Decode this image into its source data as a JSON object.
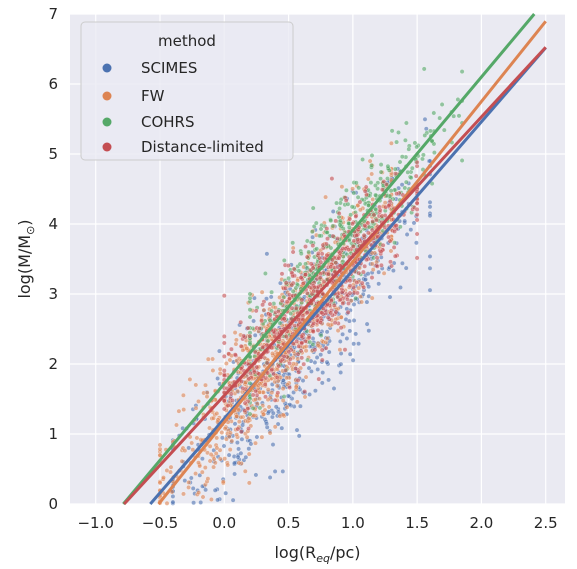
{
  "chart_data": {
    "type": "scatter",
    "title": "",
    "xlabel": {
      "main": "log(R",
      "sub": "eq",
      "suffix": "/pc)"
    },
    "ylabel": {
      "main": "log(M/M",
      "sub": "⊙",
      "suffix": ")"
    },
    "xlim": [
      -1.2,
      2.65
    ],
    "ylim": [
      0,
      7
    ],
    "xticks": [
      -1.0,
      -0.5,
      0.0,
      0.5,
      1.0,
      1.5,
      2.0,
      2.5
    ],
    "xtick_labels": [
      "−1.0",
      "−0.5",
      "0.0",
      "0.5",
      "1.0",
      "1.5",
      "2.0",
      "2.5"
    ],
    "yticks": [
      0,
      1,
      2,
      3,
      4,
      5,
      6,
      7
    ],
    "ytick_labels": [
      "0",
      "1",
      "2",
      "3",
      "4",
      "5",
      "6",
      "7"
    ],
    "grid": true,
    "background": "#eaeaf2",
    "legend": {
      "title": "method",
      "placement": "top-left",
      "entries": [
        "SCIMES",
        "FW",
        "COHRS",
        "Distance-limited"
      ]
    },
    "series": [
      {
        "name": "SCIMES",
        "color": "#4c72b0",
        "fit": {
          "slope": 2.12,
          "intercept": 1.22
        },
        "cloud": {
          "x_range": [
            -0.4,
            1.6
          ],
          "center_x": 0.55,
          "scatter_y": 0.55,
          "offset_y": -0.15,
          "count": 700
        }
      },
      {
        "name": "FW",
        "color": "#dd8452",
        "fit": {
          "slope": 2.29,
          "intercept": 1.17
        },
        "cloud": {
          "x_range": [
            -0.5,
            1.3
          ],
          "center_x": 0.4,
          "scatter_y": 0.45,
          "offset_y": 0.1,
          "count": 900
        }
      },
      {
        "name": "COHRS",
        "color": "#55a868",
        "fit": {
          "slope": 2.19,
          "intercept": 1.72
        },
        "cloud": {
          "x_range": [
            0.2,
            1.85
          ],
          "center_x": 0.9,
          "scatter_y": 0.4,
          "offset_y": 0.0,
          "count": 450
        }
      },
      {
        "name": "Distance-limited",
        "color": "#c44e52",
        "fit": {
          "slope": 1.99,
          "intercept": 1.55
        },
        "cloud": {
          "x_range": [
            0.0,
            1.5
          ],
          "center_x": 0.7,
          "scatter_y": 0.4,
          "offset_y": 0.0,
          "count": 600
        }
      }
    ]
  }
}
